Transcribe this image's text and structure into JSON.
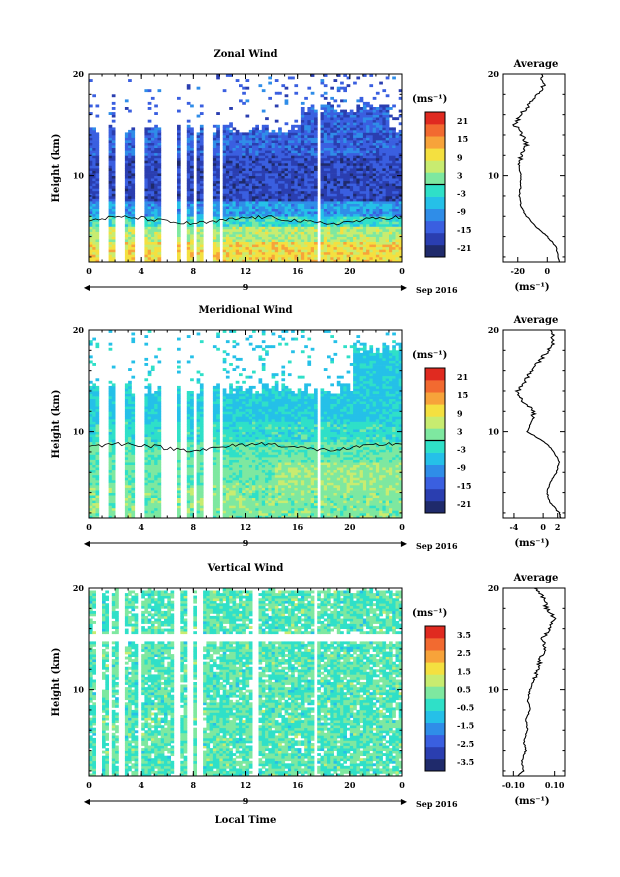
{
  "figure": {
    "xlabel": "Local Time",
    "date_label": "Sep 2016",
    "day_label": "9",
    "average_title": "Average"
  },
  "chart_data": [
    {
      "type": "heatmap",
      "title": "Zonal Wind",
      "ylabel": "Height (km)",
      "xlim": [
        0,
        24
      ],
      "ylim": [
        1.5,
        20
      ],
      "x_ticks": [
        "0",
        "4",
        "8",
        "12",
        "16",
        "20",
        "0"
      ],
      "y_ticks": [
        {
          "value": 10,
          "label": "10"
        },
        {
          "value": 20,
          "label": "20"
        }
      ],
      "colorbar": {
        "unit": "(ms⁻¹)",
        "ticks": [
          "21",
          "15",
          "9",
          "3",
          "-3",
          "-9",
          "-15",
          "-21"
        ],
        "range": [
          -24,
          24
        ]
      },
      "profile": {
        "title": "Average",
        "xlim": [
          -30,
          12
        ],
        "x_ticks": [
          {
            "value": -20,
            "label": "-20"
          },
          {
            "value": 0,
            "label": "0"
          }
        ],
        "xlabel": "(ms⁻¹)",
        "heights": [
          1.5,
          3,
          4,
          5,
          6,
          7,
          8,
          9,
          10,
          11,
          12,
          13,
          14,
          15,
          16,
          17,
          18,
          19,
          20
        ],
        "values": [
          8,
          6,
          0,
          -8,
          -14,
          -18,
          -19,
          -18,
          -18,
          -19,
          -18,
          -14,
          -17,
          -22,
          -18,
          -12,
          -6,
          -2,
          -4
        ]
      }
    },
    {
      "type": "heatmap",
      "title": "Meridional Wind",
      "ylabel": "Height (km)",
      "xlim": [
        0,
        24
      ],
      "ylim": [
        1.5,
        20
      ],
      "x_ticks": [
        "0",
        "4",
        "8",
        "12",
        "16",
        "20",
        "0"
      ],
      "y_ticks": [
        {
          "value": 10,
          "label": "10"
        },
        {
          "value": 20,
          "label": "20"
        }
      ],
      "colorbar": {
        "unit": "(ms⁻¹)",
        "ticks": [
          "21",
          "15",
          "9",
          "3",
          "-3",
          "-9",
          "-15",
          "-21"
        ],
        "range": [
          -24,
          24
        ]
      },
      "profile": {
        "title": "Average",
        "xlim": [
          -5.5,
          3
        ],
        "x_ticks": [
          {
            "value": -4,
            "label": "-4"
          },
          {
            "value": 0,
            "label": "0"
          },
          {
            "value": 2,
            "label": "2"
          }
        ],
        "xlabel": "(ms⁻¹)",
        "heights": [
          1.5,
          2,
          3,
          4,
          5,
          6,
          7,
          8,
          9,
          10,
          11,
          12,
          13,
          14,
          15,
          16,
          17,
          18,
          19,
          20
        ],
        "values": [
          2.4,
          2.2,
          1.0,
          0.5,
          1.0,
          1.8,
          2.2,
          1.5,
          0.2,
          -2.2,
          -1.6,
          -1.2,
          -2.8,
          -3.5,
          -2.5,
          -1.5,
          -0.5,
          0.8,
          1.5,
          1.0
        ]
      }
    },
    {
      "type": "heatmap",
      "title": "Vertical Wind",
      "ylabel": "Height (km)",
      "xlim": [
        0,
        24
      ],
      "ylim": [
        1.5,
        20
      ],
      "x_ticks": [
        "0",
        "4",
        "8",
        "12",
        "16",
        "20",
        "0"
      ],
      "y_ticks": [
        {
          "value": 10,
          "label": "10"
        },
        {
          "value": 20,
          "label": "20"
        }
      ],
      "colorbar": {
        "unit": "(ms⁻¹)",
        "ticks": [
          "3.5",
          "2.5",
          "1.5",
          "0.5",
          "-0.5",
          "-1.5",
          "-2.5",
          "-3.5"
        ],
        "range": [
          -4,
          4
        ]
      },
      "profile": {
        "title": "Average",
        "xlim": [
          -0.15,
          0.15
        ],
        "x_ticks": [
          {
            "value": -0.1,
            "label": "-0.10"
          },
          {
            "value": 0.1,
            "label": "0.10"
          }
        ],
        "xlabel": "(ms⁻¹)",
        "heights": [
          1.5,
          2,
          3,
          4,
          5,
          6,
          7,
          8,
          9,
          10,
          11,
          12,
          13,
          14,
          15,
          16,
          17,
          18,
          19,
          20
        ],
        "values": [
          -0.08,
          -0.05,
          -0.06,
          -0.04,
          -0.05,
          -0.03,
          -0.04,
          -0.02,
          -0.03,
          -0.02,
          0.0,
          0.02,
          0.03,
          0.05,
          0.04,
          0.08,
          0.1,
          0.06,
          0.05,
          0.0
        ]
      }
    }
  ],
  "colors": {
    "palette": [
      "#1f2a6b",
      "#2a3eb0",
      "#3a5fe0",
      "#2f8de8",
      "#25c0e8",
      "#2fe0c8",
      "#7ee8a0",
      "#c8ec70",
      "#f4e040",
      "#f7a33a",
      "#f26a30",
      "#e02a20"
    ],
    "missing": "#ffffff",
    "line": "#000000"
  }
}
